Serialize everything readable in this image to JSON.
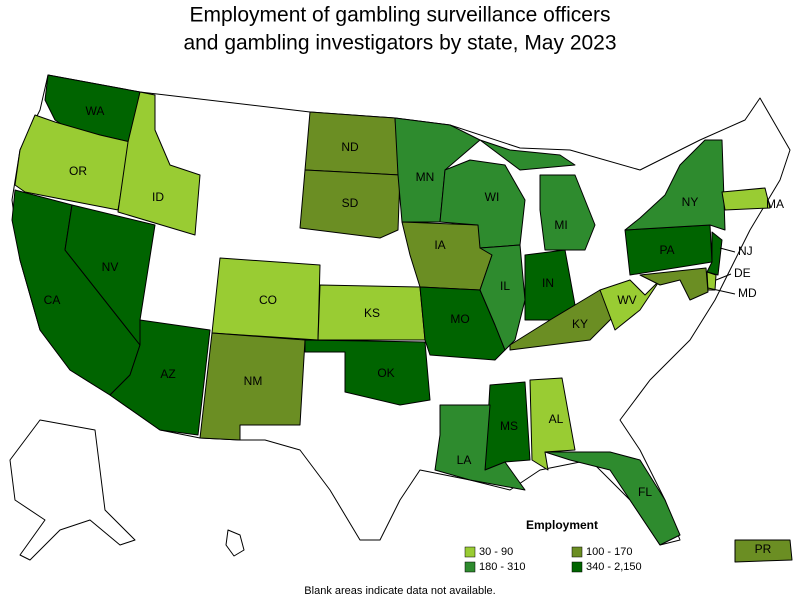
{
  "title": [
    "Employment of gambling surveillance officers",
    "and gambling investigators by state, May 2023"
  ],
  "legend": {
    "title": "Employment",
    "classes": [
      {
        "label": "30 - 90",
        "color": "#99cc33"
      },
      {
        "label": "100 - 170",
        "color": "#6b8e23"
      },
      {
        "label": "180 - 310",
        "color": "#2e8b2e"
      },
      {
        "label": "340 - 2,150",
        "color": "#006400"
      }
    ]
  },
  "states": [
    {
      "abbr": "WA",
      "class": 3
    },
    {
      "abbr": "OR",
      "class": 0
    },
    {
      "abbr": "ID",
      "class": 0
    },
    {
      "abbr": "CA",
      "class": 3
    },
    {
      "abbr": "NV",
      "class": 3
    },
    {
      "abbr": "AZ",
      "class": 3
    },
    {
      "abbr": "CO",
      "class": 0
    },
    {
      "abbr": "NM",
      "class": 1
    },
    {
      "abbr": "ND",
      "class": 1
    },
    {
      "abbr": "SD",
      "class": 1
    },
    {
      "abbr": "KS",
      "class": 0
    },
    {
      "abbr": "OK",
      "class": 3
    },
    {
      "abbr": "MN",
      "class": 2
    },
    {
      "abbr": "IA",
      "class": 1
    },
    {
      "abbr": "MO",
      "class": 3
    },
    {
      "abbr": "WI",
      "class": 2
    },
    {
      "abbr": "IL",
      "class": 2
    },
    {
      "abbr": "MI",
      "class": 2
    },
    {
      "abbr": "IN",
      "class": 3
    },
    {
      "abbr": "KY",
      "class": 1
    },
    {
      "abbr": "WV",
      "class": 0
    },
    {
      "abbr": "PA",
      "class": 3
    },
    {
      "abbr": "NY",
      "class": 2
    },
    {
      "abbr": "NJ",
      "class": 3
    },
    {
      "abbr": "DE",
      "class": 0
    },
    {
      "abbr": "MD",
      "class": 1
    },
    {
      "abbr": "MA",
      "class": 0
    },
    {
      "abbr": "MS",
      "class": 3
    },
    {
      "abbr": "AL",
      "class": 0
    },
    {
      "abbr": "LA",
      "class": 2
    },
    {
      "abbr": "FL",
      "class": 2
    },
    {
      "abbr": "PR",
      "class": 1
    }
  ],
  "note": "Blank areas indicate data not available."
}
